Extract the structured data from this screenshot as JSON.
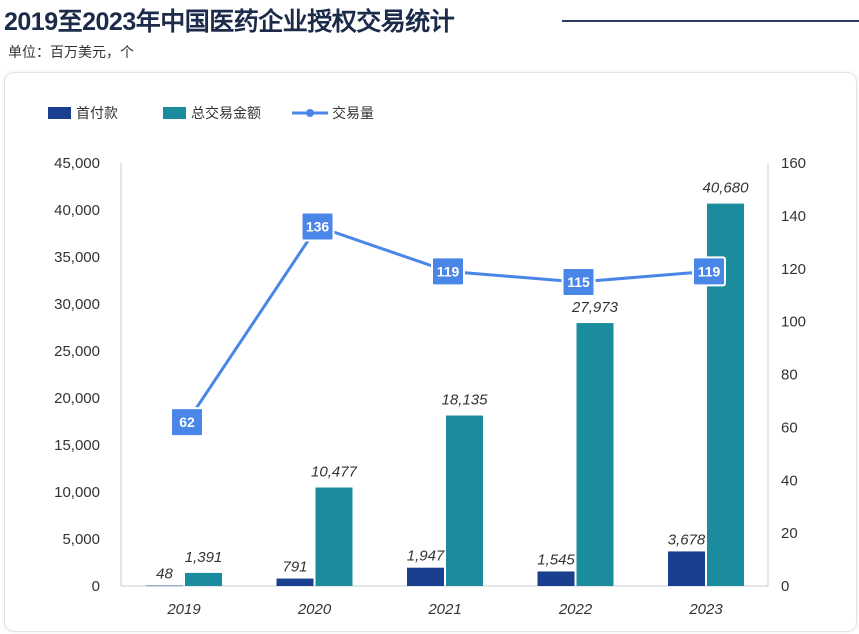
{
  "header": {
    "title": "2019至2023年中国医药企业授权交易统计",
    "unit": "单位：百万美元，个"
  },
  "colors": {
    "upfront": "#1a3f8f",
    "total": "#1a8c9e",
    "deals": "#4a86e8"
  },
  "chart_data": {
    "type": "bar",
    "categories": [
      "2019",
      "2020",
      "2021",
      "2022",
      "2023"
    ],
    "series": [
      {
        "name": "首付款",
        "type": "bar",
        "axis": "left",
        "values": [
          48,
          791,
          1947,
          1545,
          3678
        ],
        "labels": [
          "48",
          "791",
          "1,947",
          "1,545",
          "3,678"
        ]
      },
      {
        "name": "总交易金额",
        "type": "bar",
        "axis": "left",
        "values": [
          1391,
          10477,
          18135,
          27973,
          40680
        ],
        "labels": [
          "1,391",
          "10,477",
          "18,135",
          "27,973",
          "40,680"
        ]
      },
      {
        "name": "交易量",
        "type": "line",
        "axis": "right",
        "values": [
          62,
          136,
          119,
          115,
          119
        ],
        "labels": [
          "62",
          "136",
          "119",
          "115",
          "119"
        ]
      }
    ],
    "y_left": {
      "lim": [
        0,
        45000
      ],
      "ticks": [
        "0",
        "5,000",
        "10,000",
        "15,000",
        "20,000",
        "25,000",
        "30,000",
        "35,000",
        "40,000",
        "45,000"
      ]
    },
    "y_right": {
      "lim": [
        0,
        160
      ],
      "ticks": [
        "0",
        "20",
        "40",
        "60",
        "80",
        "100",
        "120",
        "140",
        "160"
      ]
    },
    "legend_position": "top-left"
  }
}
